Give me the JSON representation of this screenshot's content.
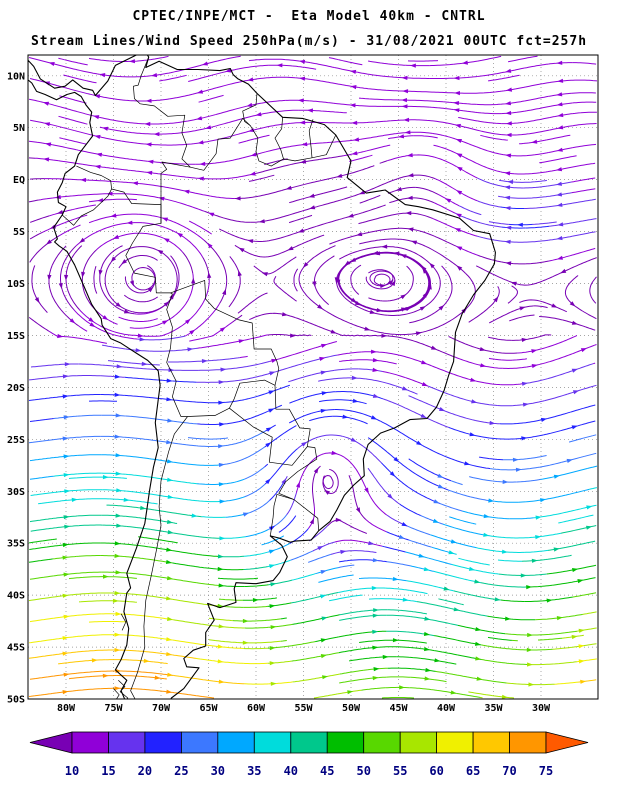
{
  "header": {
    "title": "CPTEC/INPE/MCT -  Eta Model 40km - CNTRL",
    "subtitle": "Stream Lines/Wind Speed 250hPa(m/s) - 31/08/2021 00UTC fct=257h"
  },
  "chart_data": {
    "type": "streamline-map",
    "title": "CPTEC/INPE/MCT -  Eta Model 40km - CNTRL",
    "subtitle": "Stream Lines/Wind Speed 250hPa(m/s) - 31/08/2021 00UTC fct=257h",
    "center": "CPTEC/INPE/MCT",
    "model": "Eta Model 40km",
    "run_type": "CNTRL",
    "field": "Stream Lines/Wind Speed",
    "level": "250hPa",
    "units": "m/s",
    "valid": "31/08/2021 00UTC",
    "forecast": "fct=257h",
    "region": {
      "lon_min": -84,
      "lon_max": -24,
      "lat_min": -50,
      "lat_max": 12
    },
    "lat_ticks": [
      {
        "label": "10N",
        "lat": 10
      },
      {
        "label": "5N",
        "lat": 5
      },
      {
        "label": "EQ",
        "lat": 0
      },
      {
        "label": "5S",
        "lat": -5
      },
      {
        "label": "10S",
        "lat": -10
      },
      {
        "label": "15S",
        "lat": -15
      },
      {
        "label": "20S",
        "lat": -20
      },
      {
        "label": "25S",
        "lat": -25
      },
      {
        "label": "30S",
        "lat": -30
      },
      {
        "label": "35S",
        "lat": -35
      },
      {
        "label": "40S",
        "lat": -40
      },
      {
        "label": "45S",
        "lat": -45
      },
      {
        "label": "50S",
        "lat": -50
      }
    ],
    "lon_ticks": [
      {
        "label": "80W",
        "lon": -80
      },
      {
        "label": "75W",
        "lon": -75
      },
      {
        "label": "70W",
        "lon": -70
      },
      {
        "label": "65W",
        "lon": -65
      },
      {
        "label": "60W",
        "lon": -60
      },
      {
        "label": "55W",
        "lon": -55
      },
      {
        "label": "50W",
        "lon": -50
      },
      {
        "label": "45W",
        "lon": -45
      },
      {
        "label": "40W",
        "lon": -40
      },
      {
        "label": "35W",
        "lon": -35
      },
      {
        "label": "30W",
        "lon": -30
      }
    ],
    "colorbar": {
      "levels": [
        10,
        15,
        20,
        25,
        30,
        35,
        40,
        45,
        50,
        55,
        60,
        65,
        70,
        75
      ],
      "below_color": "#7800B4",
      "segment_colors": [
        "#9000D8",
        "#6633EE",
        "#2222FF",
        "#3C78FF",
        "#00A8FF",
        "#00DCDC",
        "#00C88C",
        "#00BE00",
        "#58D800",
        "#A8E600",
        "#F0F000",
        "#FFC800",
        "#FF9600"
      ],
      "above_color": "#FF5A00",
      "label_color": "#000080"
    },
    "flow_features": [
      {
        "name": "anticyclonic gyre near 9S 71W (Bolivian High region)",
        "lon": -71.5,
        "lat": -9.5,
        "k": 2.5,
        "r": 8,
        "damp": 0.6
      },
      {
        "name": "cyclonic vortex near 28S 52W",
        "lon": -52.5,
        "lat": -28.0,
        "k": -4.5,
        "r": 7,
        "damp": 0.85
      },
      {
        "name": "equatorial curvature near 1N 42W",
        "lon": -42.0,
        "lat": 1.0,
        "k": 1.8,
        "r": 7,
        "damp": 0.3
      }
    ],
    "grid": {
      "on": true,
      "style": "dotted",
      "interval_deg": 5
    }
  }
}
